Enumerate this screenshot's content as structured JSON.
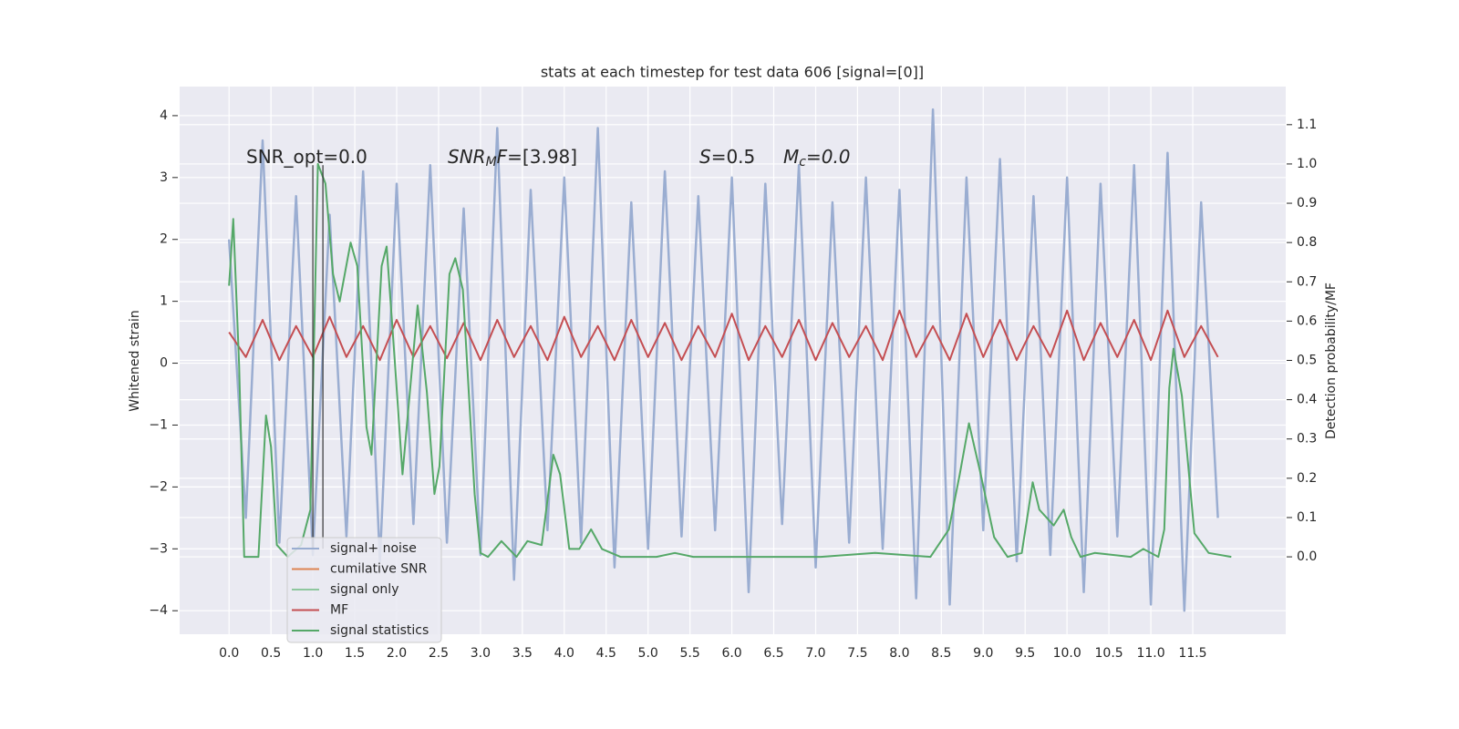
{
  "chart_data": {
    "type": "line",
    "title": "stats at each timestep for test data 606 [signal=[0]]",
    "ylabel": "Whitened strain",
    "y2label": "Detection probability/MF",
    "xlim": [
      -0.59,
      12.61
    ],
    "ylim": [
      -4.38,
      4.47
    ],
    "y2lim": [
      -0.197,
      1.197
    ],
    "grid": true,
    "xticks": [
      {
        "value": 0,
        "label": "0.0"
      },
      {
        "value": 0.5,
        "label": "0.5"
      },
      {
        "value": 1,
        "label": "1.0"
      },
      {
        "value": 1.5,
        "label": "1.5"
      },
      {
        "value": 2,
        "label": "2.0"
      },
      {
        "value": 2.5,
        "label": "2.5"
      },
      {
        "value": 3,
        "label": "3.0"
      },
      {
        "value": 3.5,
        "label": "3.5"
      },
      {
        "value": 4,
        "label": "4.0"
      },
      {
        "value": 4.5,
        "label": "4.5"
      },
      {
        "value": 5,
        "label": "5.0"
      },
      {
        "value": 5.5,
        "label": "5.5"
      },
      {
        "value": 6,
        "label": "6.0"
      },
      {
        "value": 6.5,
        "label": "6.5"
      },
      {
        "value": 7,
        "label": "7.0"
      },
      {
        "value": 7.5,
        "label": "7.5"
      },
      {
        "value": 8,
        "label": "8.0"
      },
      {
        "value": 8.5,
        "label": "8.5"
      },
      {
        "value": 9,
        "label": "9.0"
      },
      {
        "value": 9.5,
        "label": "9.5"
      },
      {
        "value": 10,
        "label": "10.0"
      },
      {
        "value": 10.5,
        "label": "10.5"
      },
      {
        "value": 11,
        "label": "11.0"
      },
      {
        "value": 11.5,
        "label": "11.5"
      }
    ],
    "yticks": [
      {
        "value": -4,
        "label": "−4"
      },
      {
        "value": -3,
        "label": "−3"
      },
      {
        "value": -2,
        "label": "−2"
      },
      {
        "value": -1,
        "label": "−1"
      },
      0,
      1,
      2,
      3,
      4
    ],
    "y2ticks": [
      {
        "value": 0,
        "label": "0.0"
      },
      {
        "value": 0.1,
        "label": "0.1"
      },
      {
        "value": 0.2,
        "label": "0.2"
      },
      {
        "value": 0.3,
        "label": "0.3"
      },
      {
        "value": 0.4,
        "label": "0.4"
      },
      {
        "value": 0.5,
        "label": "0.5"
      },
      {
        "value": 0.6,
        "label": "0.6"
      },
      {
        "value": 0.7,
        "label": "0.7"
      },
      {
        "value": 0.8,
        "label": "0.8"
      },
      {
        "value": 0.9,
        "label": "0.9"
      },
      {
        "value": 1,
        "label": "1.0"
      },
      {
        "value": 1.1,
        "label": "1.1"
      }
    ],
    "x": [
      0,
      0.2,
      0.4,
      0.6,
      0.8,
      1,
      1.2,
      1.4,
      1.6,
      1.8,
      2,
      2.2,
      2.4,
      2.6,
      2.8,
      3,
      3.2,
      3.4,
      3.6,
      3.8,
      4,
      4.2,
      4.4,
      4.6,
      4.8,
      5,
      5.2,
      5.4,
      5.6,
      5.8,
      6,
      6.2,
      6.4,
      6.6,
      6.8,
      7,
      7.2,
      7.4,
      7.6,
      7.8,
      8,
      8.2,
      8.4,
      8.6,
      8.8,
      9,
      9.2,
      9.4,
      9.6,
      9.8,
      10,
      10.2,
      10.4,
      10.6,
      10.8,
      11,
      11.2,
      11.4,
      11.6,
      11.8
    ],
    "series": [
      {
        "name": "signal+ noise",
        "color": "#9aadd1",
        "values": [
          2.0,
          -2.5,
          3.6,
          -2.9,
          2.7,
          -3.1,
          2.4,
          -2.8,
          3.1,
          -3.2,
          2.9,
          -2.6,
          3.2,
          -2.9,
          2.5,
          -3.1,
          3.8,
          -3.5,
          2.8,
          -2.7,
          3.0,
          -2.9,
          3.8,
          -3.3,
          2.6,
          -3.0,
          3.1,
          -2.8,
          2.7,
          -2.7,
          3.0,
          -3.7,
          2.9,
          -2.6,
          3.2,
          -3.3,
          2.6,
          -2.9,
          3.0,
          -3.0,
          2.8,
          -3.8,
          4.1,
          -3.9,
          3.0,
          -2.7,
          3.3,
          -3.2,
          2.7,
          -3.1,
          3.0,
          -3.7,
          2.9,
          -2.8,
          3.2,
          -3.9,
          3.4,
          -4.0,
          2.6,
          -2.5
        ]
      },
      {
        "name": "cumilative SNR",
        "color": "#dd8452"
      },
      {
        "name": "signal only",
        "color": "#8fc79e"
      },
      {
        "name": "MF",
        "color": "#c44e52",
        "values": [
          0.5,
          0.1,
          0.7,
          0.05,
          0.6,
          0.1,
          0.75,
          0.1,
          0.6,
          0.05,
          0.7,
          0.1,
          0.6,
          0.08,
          0.65,
          0.05,
          0.7,
          0.1,
          0.6,
          0.05,
          0.75,
          0.1,
          0.6,
          0.05,
          0.7,
          0.1,
          0.65,
          0.05,
          0.6,
          0.1,
          0.8,
          0.05,
          0.6,
          0.1,
          0.7,
          0.05,
          0.65,
          0.1,
          0.6,
          0.05,
          0.85,
          0.1,
          0.6,
          0.05,
          0.8,
          0.1,
          0.7,
          0.05,
          0.6,
          0.1,
          0.85,
          0.05,
          0.65,
          0.1,
          0.7,
          0.05,
          0.85,
          0.1,
          0.6,
          0.1
        ]
      },
      {
        "name": "signal statistics",
        "color": "#55a868",
        "axis": "y2",
        "x": [
          0,
          0.05,
          0.12,
          0.18,
          0.35,
          0.44,
          0.5,
          0.57,
          0.7,
          0.86,
          0.97,
          1.06,
          1.15,
          1.24,
          1.32,
          1.45,
          1.53,
          1.64,
          1.7,
          1.82,
          1.88,
          1.98,
          2.07,
          2.25,
          2.36,
          2.45,
          2.51,
          2.63,
          2.7,
          2.79,
          2.93,
          3.0,
          3.09,
          3.25,
          3.43,
          3.56,
          3.73,
          3.87,
          3.95,
          4.06,
          4.18,
          4.32,
          4.45,
          4.67,
          5.1,
          5.32,
          5.54,
          6.19,
          7.06,
          7.71,
          8.37,
          8.59,
          8.72,
          8.83,
          8.97,
          9.13,
          9.29,
          9.46,
          9.59,
          9.67,
          9.84,
          9.96,
          10.05,
          10.16,
          10.33,
          10.76,
          10.91,
          11.09,
          11.16,
          11.22,
          11.27,
          11.37,
          11.52,
          11.69,
          11.96
        ],
        "values": [
          0.69,
          0.86,
          0.49,
          0.0,
          0.0,
          0.36,
          0.28,
          0.03,
          0.0,
          0.03,
          0.12,
          1.0,
          0.95,
          0.72,
          0.65,
          0.8,
          0.74,
          0.33,
          0.26,
          0.74,
          0.79,
          0.49,
          0.21,
          0.64,
          0.42,
          0.16,
          0.23,
          0.72,
          0.76,
          0.68,
          0.16,
          0.01,
          0.0,
          0.04,
          0.0,
          0.04,
          0.03,
          0.26,
          0.21,
          0.02,
          0.02,
          0.07,
          0.02,
          0.0,
          0.0,
          0.01,
          0.0,
          0.0,
          0.0,
          0.01,
          0.0,
          0.07,
          0.21,
          0.34,
          0.21,
          0.05,
          0.0,
          0.01,
          0.19,
          0.12,
          0.08,
          0.12,
          0.05,
          0.0,
          0.01,
          0.0,
          0.02,
          0.0,
          0.07,
          0.43,
          0.53,
          0.41,
          0.06,
          0.01,
          0.0
        ]
      }
    ],
    "vlines": [
      {
        "x": 1.0,
        "ymin": -3.0,
        "ymax": 3.2,
        "color": "#333333"
      },
      {
        "x": 1.12,
        "ymin": -3.0,
        "ymax": 3.2,
        "color": "#333333"
      }
    ],
    "annotations": [
      {
        "parts": [
          "SNR_opt=0.0"
        ]
      },
      {
        "parts": [
          "SNR",
          "M",
          "F=[3.98]"
        ]
      },
      {
        "parts": [
          "S",
          "=0.5"
        ]
      },
      {
        "parts": [
          "M",
          "c",
          "=0.0"
        ]
      }
    ]
  }
}
